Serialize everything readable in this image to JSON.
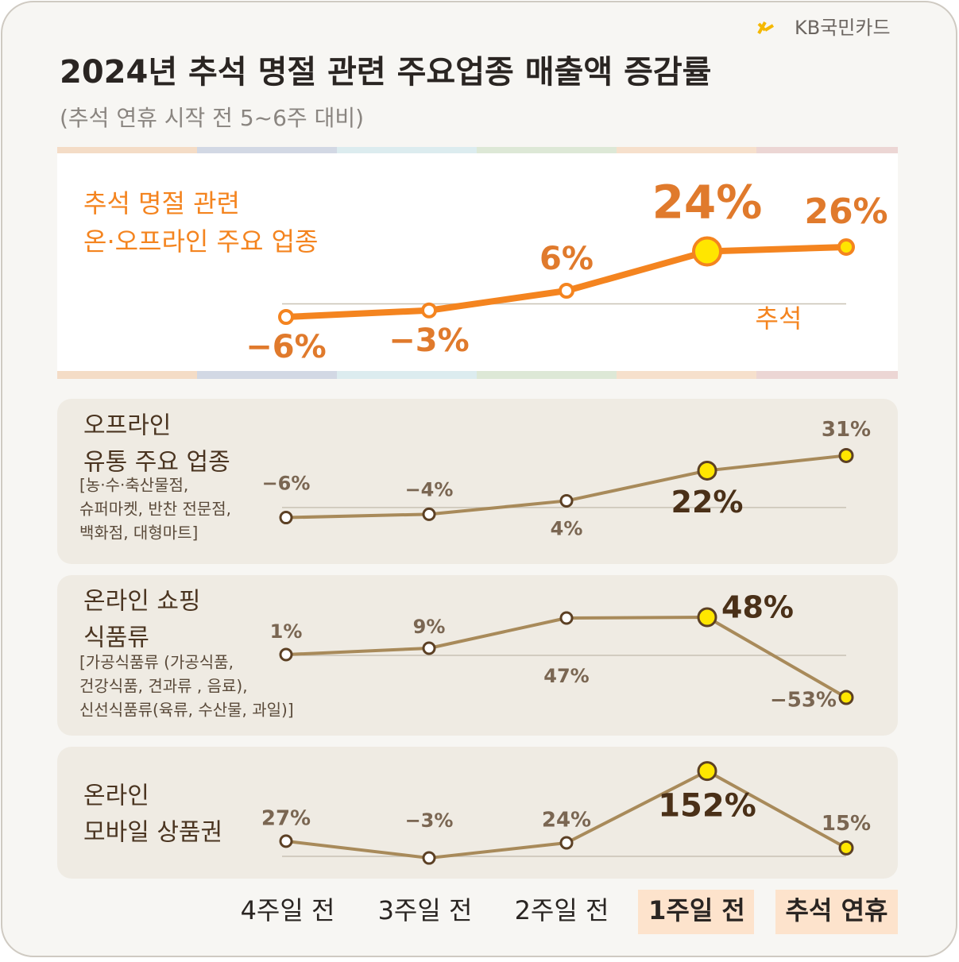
{
  "brand": "KB국민카드",
  "title": "2024년 추석 명절 관련 주요업종 매출액 증감률",
  "subtitle": "(추석 연휴 시작 전 5~6주 대비)",
  "categories": [
    "4주일 전",
    "3주일 전",
    "2주일 전",
    "1주일 전",
    "추석 연휴"
  ],
  "chart_data": [
    {
      "type": "line",
      "title": [
        "추석 명절 관련",
        "온·오프라인 주요 업종"
      ],
      "annotation": "추석",
      "values": [
        -6,
        -3,
        6,
        24,
        26
      ],
      "value_labels": [
        "−6%",
        "−3%",
        "6%",
        "24%",
        "26%"
      ],
      "color": "#f4841f",
      "ylim": [
        -10,
        30
      ]
    },
    {
      "type": "line",
      "title": [
        "오프라인",
        "유통 주요 업종"
      ],
      "note": [
        "[농·수·축산물점,",
        "슈퍼마켓, 반찬 전문점,",
        "백화점, 대형마트]"
      ],
      "values": [
        -6,
        -4,
        4,
        22,
        31
      ],
      "value_labels": [
        "−6%",
        "−4%",
        "4%",
        "22%",
        "31%"
      ],
      "color": "#a88a5a",
      "ylim": [
        -10,
        35
      ]
    },
    {
      "type": "line",
      "title": [
        "온라인 쇼핑",
        "식품류"
      ],
      "note": [
        "[가공식품류 (가공식품,",
        "건강식품, 견과류 , 음료),",
        "신선식품류(육류, 수산물, 과일)]"
      ],
      "values": [
        1,
        9,
        47,
        48,
        -53
      ],
      "value_labels": [
        "1%",
        "9%",
        "47%",
        "48%",
        "−53%"
      ],
      "color": "#a88a5a",
      "ylim": [
        -60,
        55
      ]
    },
    {
      "type": "line",
      "title": [
        "온라인",
        "모바일 상품권"
      ],
      "values": [
        27,
        -3,
        24,
        152,
        15
      ],
      "value_labels": [
        "27%",
        "−3%",
        "24%",
        "152%",
        "15%"
      ],
      "color": "#a88a5a",
      "ylim": [
        -10,
        160
      ]
    }
  ]
}
